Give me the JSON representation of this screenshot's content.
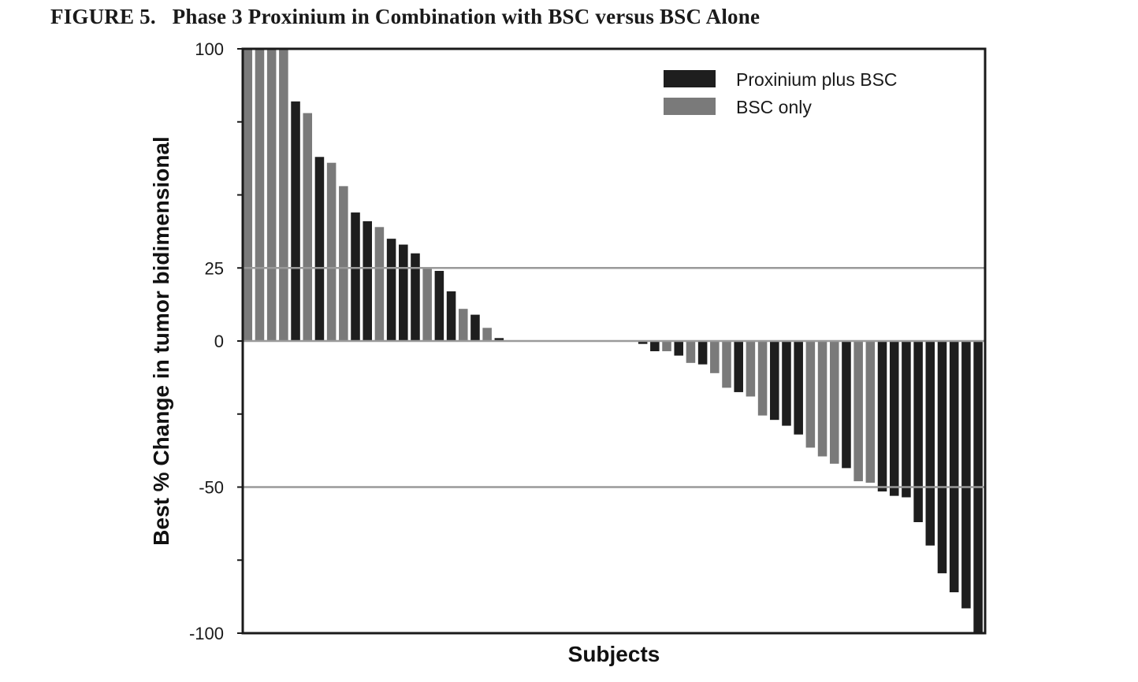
{
  "figure": {
    "title": "FIGURE 5.   Phase 3 Proxinium in Combination with BSC versus BSC Alone"
  },
  "colors": {
    "Proxinium plus BSC": "#1e1e1e",
    "BSC only": "#7a7a7a",
    "reference_line": "#9a9a9a",
    "axis": "#1a1a1a"
  },
  "chart_data": {
    "type": "bar",
    "title": "",
    "xlabel": "Subjects",
    "ylabel": "Best % Change in tumor bidimensional",
    "ylim": [
      -100,
      100
    ],
    "yticks": [
      100,
      75,
      50,
      25,
      0,
      -25,
      -50,
      -75,
      -100
    ],
    "ytick_labels": [
      "100",
      "",
      "",
      "25",
      "0",
      "",
      "-50",
      "",
      "-100"
    ],
    "reference_lines": [
      25,
      -50
    ],
    "grid": false,
    "legend": {
      "position": "top-right",
      "entries": [
        "Proxinium plus BSC",
        "BSC only"
      ]
    },
    "series_order": [
      "Proxinium plus BSC",
      "BSC only"
    ],
    "bars": [
      {
        "group": "BSC only",
        "value": 100
      },
      {
        "group": "BSC only",
        "value": 100
      },
      {
        "group": "BSC only",
        "value": 100
      },
      {
        "group": "BSC only",
        "value": 100
      },
      {
        "group": "Proxinium plus BSC",
        "value": 82
      },
      {
        "group": "BSC only",
        "value": 78
      },
      {
        "group": "Proxinium plus BSC",
        "value": 63
      },
      {
        "group": "BSC only",
        "value": 61
      },
      {
        "group": "BSC only",
        "value": 53
      },
      {
        "group": "Proxinium plus BSC",
        "value": 44
      },
      {
        "group": "Proxinium plus BSC",
        "value": 41
      },
      {
        "group": "BSC only",
        "value": 39
      },
      {
        "group": "Proxinium plus BSC",
        "value": 35
      },
      {
        "group": "Proxinium plus BSC",
        "value": 33
      },
      {
        "group": "Proxinium plus BSC",
        "value": 30
      },
      {
        "group": "BSC only",
        "value": 25
      },
      {
        "group": "Proxinium plus BSC",
        "value": 24
      },
      {
        "group": "Proxinium plus BSC",
        "value": 17
      },
      {
        "group": "BSC only",
        "value": 11
      },
      {
        "group": "Proxinium plus BSC",
        "value": 9
      },
      {
        "group": "BSC only",
        "value": 4.5
      },
      {
        "group": "Proxinium plus BSC",
        "value": 1
      },
      {
        "group": "BSC only",
        "value": 0
      },
      {
        "group": "BSC only",
        "value": 0
      },
      {
        "group": "BSC only",
        "value": 0
      },
      {
        "group": "BSC only",
        "value": 0
      },
      {
        "group": "BSC only",
        "value": 0
      },
      {
        "group": "BSC only",
        "value": 0
      },
      {
        "group": "BSC only",
        "value": 0
      },
      {
        "group": "BSC only",
        "value": 0
      },
      {
        "group": "BSC only",
        "value": 0
      },
      {
        "group": "BSC only",
        "value": 0
      },
      {
        "group": "BSC only",
        "value": 0
      },
      {
        "group": "Proxinium plus BSC",
        "value": -1
      },
      {
        "group": "Proxinium plus BSC",
        "value": -3.5
      },
      {
        "group": "BSC only",
        "value": -3.5
      },
      {
        "group": "Proxinium plus BSC",
        "value": -5
      },
      {
        "group": "BSC only",
        "value": -7.5
      },
      {
        "group": "Proxinium plus BSC",
        "value": -8
      },
      {
        "group": "BSC only",
        "value": -11
      },
      {
        "group": "BSC only",
        "value": -16
      },
      {
        "group": "Proxinium plus BSC",
        "value": -17.5
      },
      {
        "group": "BSC only",
        "value": -19
      },
      {
        "group": "BSC only",
        "value": -25.5
      },
      {
        "group": "Proxinium plus BSC",
        "value": -27
      },
      {
        "group": "Proxinium plus BSC",
        "value": -29
      },
      {
        "group": "Proxinium plus BSC",
        "value": -32
      },
      {
        "group": "BSC only",
        "value": -36.5
      },
      {
        "group": "BSC only",
        "value": -39.5
      },
      {
        "group": "BSC only",
        "value": -42
      },
      {
        "group": "Proxinium plus BSC",
        "value": -43.5
      },
      {
        "group": "BSC only",
        "value": -48
      },
      {
        "group": "BSC only",
        "value": -48.5
      },
      {
        "group": "Proxinium plus BSC",
        "value": -51.5
      },
      {
        "group": "Proxinium plus BSC",
        "value": -53
      },
      {
        "group": "Proxinium plus BSC",
        "value": -53.5
      },
      {
        "group": "Proxinium plus BSC",
        "value": -62
      },
      {
        "group": "Proxinium plus BSC",
        "value": -70
      },
      {
        "group": "Proxinium plus BSC",
        "value": -79.5
      },
      {
        "group": "Proxinium plus BSC",
        "value": -86
      },
      {
        "group": "Proxinium plus BSC",
        "value": -91.5
      },
      {
        "group": "Proxinium plus BSC",
        "value": -100
      }
    ]
  }
}
